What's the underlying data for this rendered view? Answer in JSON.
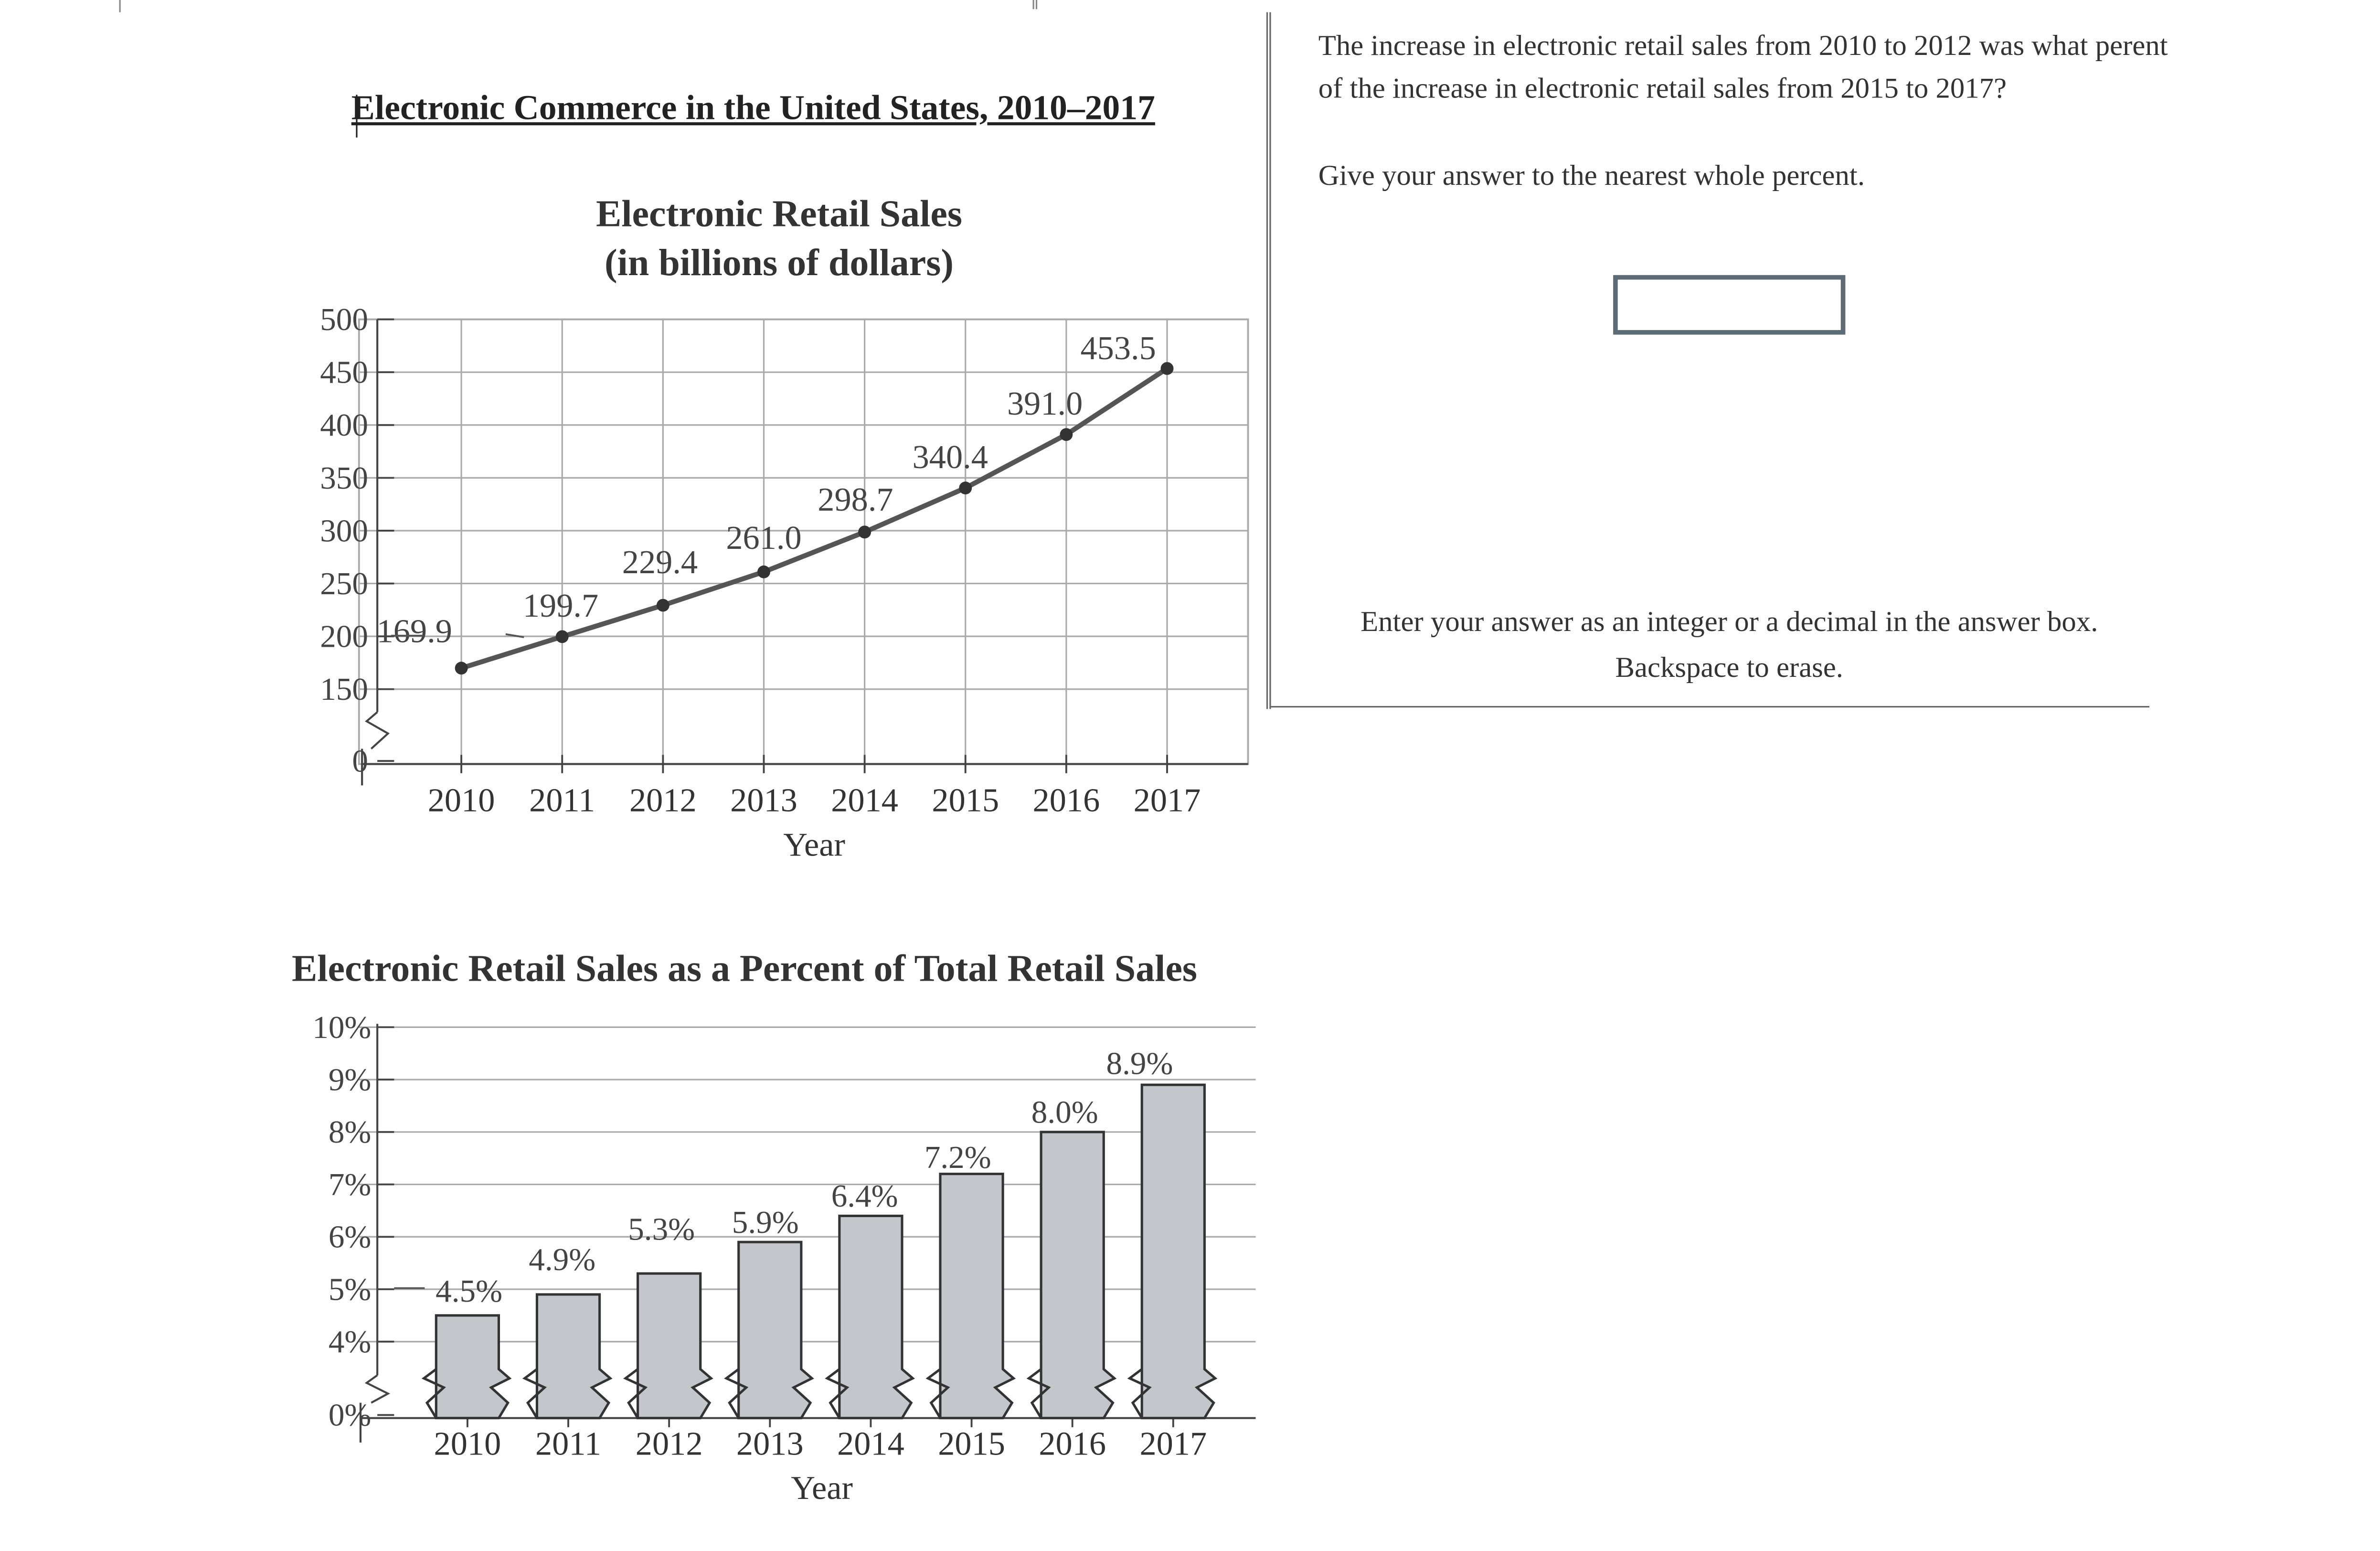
{
  "figure": {
    "heading": "Electronic Commerce in the United States, 2010–2017"
  },
  "question": {
    "text": "The increase in electronic retail sales from 2010 to 2012 was what perent of the increase in electronic retail sales from 2015 to 2017?",
    "instruction": "Give your answer to the nearest whole percent.",
    "answer_value": "",
    "entry_hint_line1": "Enter your answer as an integer or a decimal in the answer box.",
    "entry_hint_line2": "Backspace to erase."
  },
  "colors": {
    "bar_fill": "#c5c5cc",
    "line": "#555555",
    "grid": "#aaaaaa",
    "text": "#333333"
  },
  "chart_data": [
    {
      "type": "line",
      "title": "Electronic Retail Sales",
      "subtitle": "(in billions of dollars)",
      "xlabel": "Year",
      "ylabel": "",
      "x": [
        "2010",
        "2011",
        "2012",
        "2013",
        "2014",
        "2015",
        "2016",
        "2017"
      ],
      "values": [
        169.9,
        199.7,
        229.4,
        261.0,
        298.7,
        340.4,
        391.0,
        453.5
      ],
      "data_labels": [
        "169.9",
        "199.7",
        "229.4",
        "261.0",
        "298.7",
        "340.4",
        "391.0",
        "453.5"
      ],
      "yticks": [
        "0",
        "150",
        "200",
        "250",
        "300",
        "350",
        "400",
        "450",
        "500"
      ],
      "ylim": [
        150,
        500
      ],
      "axis_break": true,
      "grid": true
    },
    {
      "type": "bar",
      "title": "Electronic Retail Sales as a Percent of Total Retail Sales",
      "xlabel": "Year",
      "ylabel": "",
      "categories": [
        "2010",
        "2011",
        "2012",
        "2013",
        "2014",
        "2015",
        "2016",
        "2017"
      ],
      "values": [
        4.5,
        4.9,
        5.3,
        5.9,
        6.4,
        7.2,
        8.0,
        8.9
      ],
      "data_labels": [
        "4.5%",
        "4.9%",
        "5.3%",
        "5.9%",
        "6.4%",
        "7.2%",
        "8.0%",
        "8.9%"
      ],
      "yticks": [
        "0%",
        "4%",
        "5%",
        "6%",
        "7%",
        "8%",
        "9%",
        "10%"
      ],
      "ylim": [
        4,
        10
      ],
      "axis_break": true,
      "grid": true
    }
  ]
}
